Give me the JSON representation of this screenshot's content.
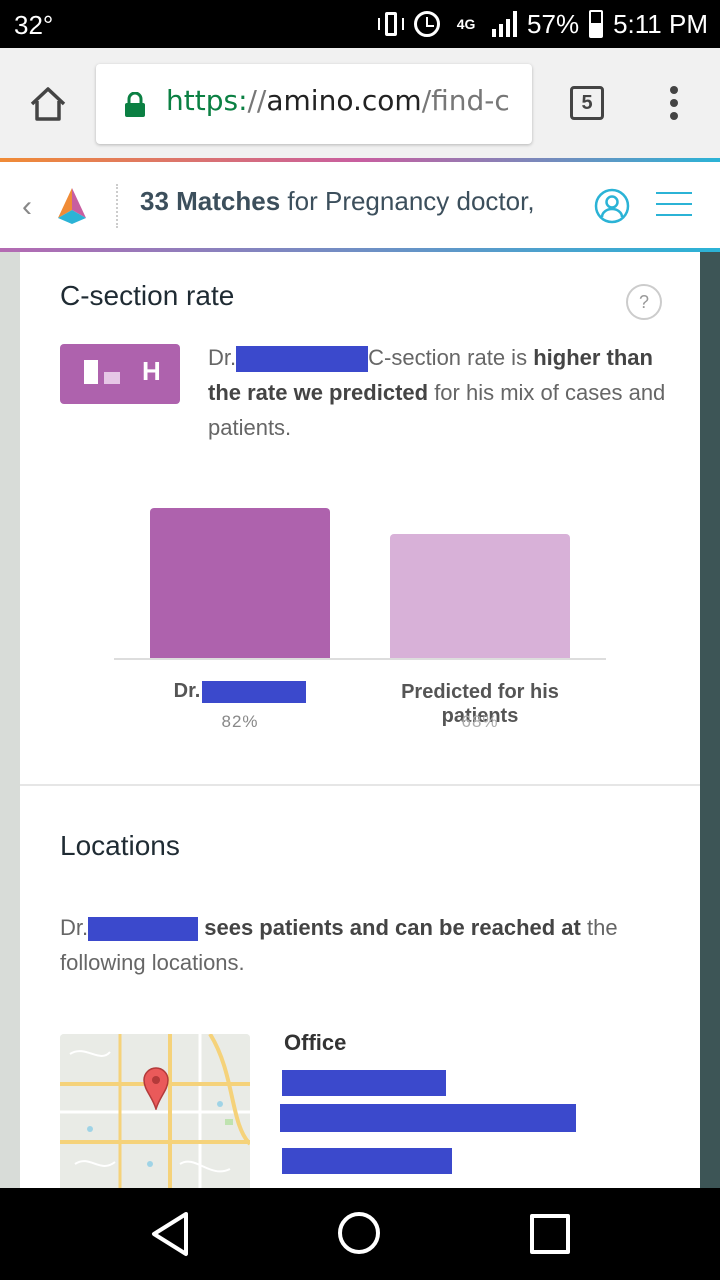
{
  "status_bar": {
    "temperature": "32°",
    "network": "4G",
    "battery_percent": "57%",
    "time": "5:11 PM"
  },
  "browser": {
    "url_scheme": "https:",
    "url_sep": "//",
    "url_host": "amino.com",
    "url_path": "/find-c",
    "tab_count": "5"
  },
  "header": {
    "title_bold": "33 Matches",
    "title_rest": " for Pregnancy doctor,"
  },
  "csection": {
    "title": "C-section rate",
    "help": "?",
    "badge_letter": "H",
    "desc_prefix": "Dr.",
    "desc_mid": "C-section rate is",
    "desc_bold": "higher than the rate we predicted",
    "desc_suffix": " for his mix of cases and patients."
  },
  "chart_data": {
    "type": "bar",
    "categories": [
      "Dr.",
      "Predicted for his patients"
    ],
    "values": [
      82,
      68
    ],
    "value_labels": [
      "82%",
      "68%"
    ],
    "colors": [
      "#ae62ad",
      "#d8b1d8"
    ],
    "ylim": [
      0,
      82
    ]
  },
  "locations": {
    "title": "Locations",
    "desc_prefix": "Dr.",
    "desc_bold": "sees patients and can be reached at",
    "desc_suffix": " the following locations.",
    "office_label": "Office"
  },
  "colors": {
    "accent_purple": "#ae62ad",
    "accent_blue": "#2bb3d6",
    "redaction": "#3b49cc"
  }
}
